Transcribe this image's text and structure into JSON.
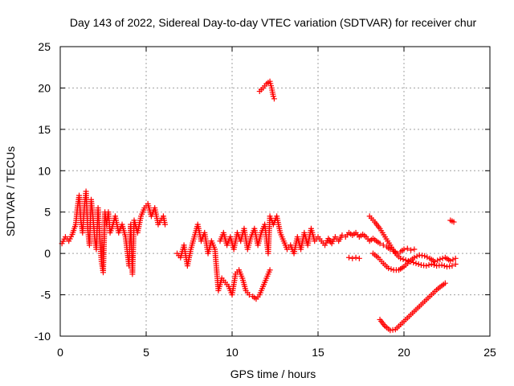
{
  "chart_data": {
    "type": "scatter",
    "title": "Day 143 of 2022, Sidereal Day-to-day VTEC variation (SDTVAR) for receiver chur",
    "xlabel": "GPS time / hours",
    "ylabel": "SDTVAR / TECUs",
    "xlim": [
      0,
      25
    ],
    "ylim": [
      -10,
      25
    ],
    "xticks": [
      0,
      5,
      10,
      15,
      20,
      25
    ],
    "yticks": [
      -10,
      -5,
      0,
      5,
      10,
      15,
      20,
      25
    ],
    "grid": true,
    "marker": "+",
    "color": "#ff0000",
    "segments": [
      {
        "name": "seg-a",
        "points": [
          [
            0.1,
            1.2
          ],
          [
            0.3,
            2.0
          ],
          [
            0.5,
            1.5
          ],
          [
            0.7,
            2.3
          ],
          [
            0.9,
            3.5
          ],
          [
            1.0,
            5.5
          ],
          [
            1.1,
            7.0
          ],
          [
            1.2,
            4.0
          ],
          [
            1.3,
            2.5
          ],
          [
            1.4,
            5.5
          ],
          [
            1.5,
            7.5
          ],
          [
            1.6,
            3.0
          ],
          [
            1.7,
            1.0
          ],
          [
            1.8,
            6.5
          ],
          [
            1.9,
            4.5
          ],
          [
            2.0,
            2.0
          ],
          [
            2.1,
            0.5
          ],
          [
            2.2,
            5.5
          ],
          [
            2.3,
            2.0
          ],
          [
            2.4,
            -1.0
          ],
          [
            2.5,
            -2.3
          ],
          [
            2.6,
            5.0
          ],
          [
            2.7,
            3.5
          ],
          [
            2.8,
            5.0
          ],
          [
            2.9,
            2.5
          ],
          [
            3.0,
            3.0
          ],
          [
            3.2,
            4.5
          ],
          [
            3.4,
            2.5
          ],
          [
            3.6,
            3.5
          ],
          [
            3.8,
            2.0
          ],
          [
            4.0,
            -1.5
          ],
          [
            4.1,
            3.5
          ],
          [
            4.2,
            -2.5
          ],
          [
            4.3,
            4.0
          ],
          [
            4.5,
            2.5
          ],
          [
            4.7,
            4.5
          ],
          [
            4.9,
            5.5
          ],
          [
            5.1,
            6.0
          ],
          [
            5.3,
            4.5
          ],
          [
            5.5,
            5.5
          ],
          [
            5.7,
            3.5
          ],
          [
            6.0,
            4.5
          ],
          [
            6.1,
            3.5
          ]
        ]
      },
      {
        "name": "seg-b",
        "points": [
          [
            6.8,
            0.0
          ],
          [
            7.0,
            -0.5
          ],
          [
            7.2,
            1.0
          ],
          [
            7.4,
            -1.5
          ],
          [
            7.6,
            0.5
          ],
          [
            7.8,
            2.0
          ],
          [
            8.0,
            3.5
          ],
          [
            8.2,
            1.5
          ],
          [
            8.4,
            2.5
          ],
          [
            8.6,
            0.0
          ],
          [
            8.8,
            1.5
          ],
          [
            9.0,
            0.5
          ],
          [
            9.1,
            -2.0
          ],
          [
            9.2,
            -4.5
          ],
          [
            9.4,
            -3.0
          ],
          [
            9.6,
            -3.5
          ],
          [
            9.8,
            -4.0
          ],
          [
            10.0,
            -5.0
          ],
          [
            10.2,
            -2.5
          ],
          [
            10.4,
            -2.0
          ],
          [
            10.6,
            -3.0
          ],
          [
            10.8,
            -4.5
          ],
          [
            11.0,
            -5.0
          ],
          [
            11.2,
            -5.2
          ],
          [
            11.4,
            -5.5
          ],
          [
            11.6,
            -5.0
          ],
          [
            11.8,
            -4.0
          ],
          [
            12.0,
            -3.0
          ],
          [
            12.2,
            -2.0
          ]
        ]
      },
      {
        "name": "seg-c",
        "points": [
          [
            9.3,
            1.5
          ],
          [
            9.5,
            2.5
          ],
          [
            9.7,
            1.0
          ],
          [
            9.9,
            2.0
          ],
          [
            10.1,
            0.5
          ],
          [
            10.3,
            2.5
          ],
          [
            10.5,
            1.5
          ],
          [
            10.7,
            3.0
          ],
          [
            10.9,
            0.5
          ],
          [
            11.1,
            2.0
          ],
          [
            11.3,
            3.0
          ],
          [
            11.5,
            1.0
          ],
          [
            11.7,
            2.5
          ],
          [
            11.9,
            3.5
          ],
          [
            12.1,
            0.0
          ],
          [
            12.2,
            4.5
          ],
          [
            12.4,
            3.5
          ],
          [
            12.6,
            4.5
          ],
          [
            12.8,
            2.5
          ],
          [
            13.0,
            1.5
          ],
          [
            13.2,
            0.5
          ],
          [
            13.4,
            1.0
          ],
          [
            13.6,
            0.0
          ],
          [
            13.8,
            2.0
          ],
          [
            14.0,
            0.5
          ],
          [
            14.2,
            2.5
          ],
          [
            14.4,
            1.0
          ],
          [
            14.6,
            3.0
          ],
          [
            14.8,
            1.5
          ],
          [
            15.0,
            2.0
          ],
          [
            15.2,
            1.5
          ],
          [
            15.4,
            1.0
          ],
          [
            15.6,
            1.8
          ],
          [
            15.8,
            1.2
          ],
          [
            16.0,
            2.0
          ],
          [
            16.2,
            1.5
          ],
          [
            16.4,
            2.2
          ],
          [
            16.6,
            2.0
          ],
          [
            16.8,
            2.5
          ],
          [
            17.0,
            2.2
          ],
          [
            17.2,
            2.5
          ],
          [
            17.4,
            2.0
          ],
          [
            17.6,
            2.3
          ],
          [
            17.8,
            2.0
          ],
          [
            18.0,
            1.5
          ],
          [
            18.2,
            1.8
          ],
          [
            18.4,
            1.5
          ],
          [
            18.6,
            1.2
          ],
          [
            18.8,
            1.0
          ],
          [
            19.0,
            0.8
          ],
          [
            19.2,
            0.5
          ],
          [
            19.4,
            0.3
          ],
          [
            19.6,
            0.0
          ],
          [
            19.8,
            0.2
          ],
          [
            20.0,
            0.5
          ],
          [
            20.2,
            0.6
          ],
          [
            20.4,
            0.4
          ],
          [
            20.6,
            0.5
          ]
        ]
      },
      {
        "name": "seg-d",
        "points": [
          [
            16.8,
            -0.5
          ],
          [
            17.0,
            -0.6
          ],
          [
            17.2,
            -0.5
          ],
          [
            17.4,
            -0.6
          ]
        ]
      },
      {
        "name": "seg-e",
        "points": [
          [
            11.6,
            19.6
          ],
          [
            11.8,
            20.0
          ],
          [
            12.0,
            20.5
          ],
          [
            12.2,
            20.8
          ],
          [
            12.3,
            20.0
          ],
          [
            12.4,
            19.0
          ],
          [
            12.45,
            18.7
          ]
        ]
      },
      {
        "name": "seg-f",
        "points": [
          [
            18.0,
            4.5
          ],
          [
            18.3,
            3.8
          ],
          [
            18.6,
            3.0
          ],
          [
            18.9,
            2.0
          ],
          [
            19.2,
            1.0
          ],
          [
            19.5,
            0.0
          ],
          [
            19.8,
            -0.6
          ],
          [
            20.1,
            -0.8
          ],
          [
            20.4,
            -1.0
          ],
          [
            20.7,
            -1.2
          ],
          [
            21.0,
            -1.4
          ],
          [
            21.3,
            -1.5
          ],
          [
            21.6,
            -1.3
          ],
          [
            21.9,
            -1.5
          ],
          [
            22.2,
            -1.4
          ],
          [
            22.5,
            -1.6
          ],
          [
            22.8,
            -1.5
          ],
          [
            23.0,
            -1.3
          ]
        ]
      },
      {
        "name": "seg-g",
        "points": [
          [
            18.2,
            0.0
          ],
          [
            18.5,
            -0.5
          ],
          [
            18.8,
            -1.2
          ],
          [
            19.1,
            -1.8
          ],
          [
            19.4,
            -2.0
          ],
          [
            19.7,
            -2.0
          ],
          [
            20.0,
            -1.6
          ],
          [
            20.3,
            -1.0
          ],
          [
            20.6,
            -0.5
          ],
          [
            20.9,
            -0.2
          ],
          [
            21.2,
            -0.3
          ],
          [
            21.5,
            -0.6
          ],
          [
            21.8,
            -1.0
          ],
          [
            22.1,
            -0.7
          ],
          [
            22.4,
            -0.5
          ],
          [
            22.7,
            -0.9
          ],
          [
            23.0,
            -0.6
          ]
        ]
      },
      {
        "name": "seg-h",
        "points": [
          [
            18.6,
            -8.0
          ],
          [
            18.9,
            -8.8
          ],
          [
            19.2,
            -9.3
          ],
          [
            19.5,
            -9.2
          ],
          [
            19.8,
            -8.6
          ],
          [
            20.1,
            -8.0
          ],
          [
            20.4,
            -7.4
          ],
          [
            20.7,
            -6.8
          ],
          [
            21.0,
            -6.2
          ],
          [
            21.3,
            -5.6
          ],
          [
            21.6,
            -5.0
          ],
          [
            21.9,
            -4.4
          ],
          [
            22.2,
            -3.9
          ],
          [
            22.4,
            -3.6
          ]
        ]
      },
      {
        "name": "seg-i",
        "points": [
          [
            22.7,
            4.0
          ],
          [
            22.8,
            3.9
          ],
          [
            22.9,
            3.8
          ]
        ]
      }
    ]
  }
}
